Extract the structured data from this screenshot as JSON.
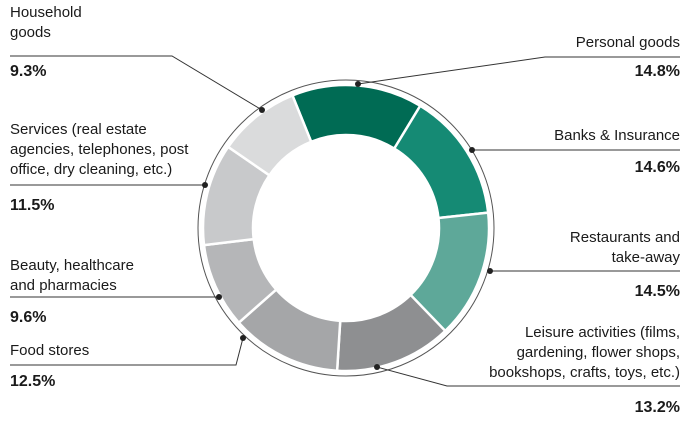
{
  "chart_data": {
    "type": "donut",
    "categories": [
      "Personal goods",
      "Banks & Insurance",
      "Restaurants and\ntake-away",
      "Leisure activities (films,\ngardening, flower shops,\nbookshops, crafts, toys, etc.)",
      "Food stores",
      "Beauty, healthcare\nand pharmacies",
      "Services (real estate\nagencies, telephones, post\noffice, dry cleaning, etc.)",
      "Household\ngoods"
    ],
    "values": [
      14.8,
      14.6,
      14.5,
      13.2,
      12.5,
      9.6,
      11.5,
      9.3
    ],
    "value_labels": [
      "14.8%",
      "14.6%",
      "14.5%",
      "13.2%",
      "12.5%",
      "9.6%",
      "11.5%",
      "9.3%"
    ],
    "colors": [
      "#006b54",
      "#158a74",
      "#5ea899",
      "#8e8f91",
      "#a5a6a8",
      "#b5b6b8",
      "#c8c9cb",
      "#dadbdc"
    ]
  }
}
